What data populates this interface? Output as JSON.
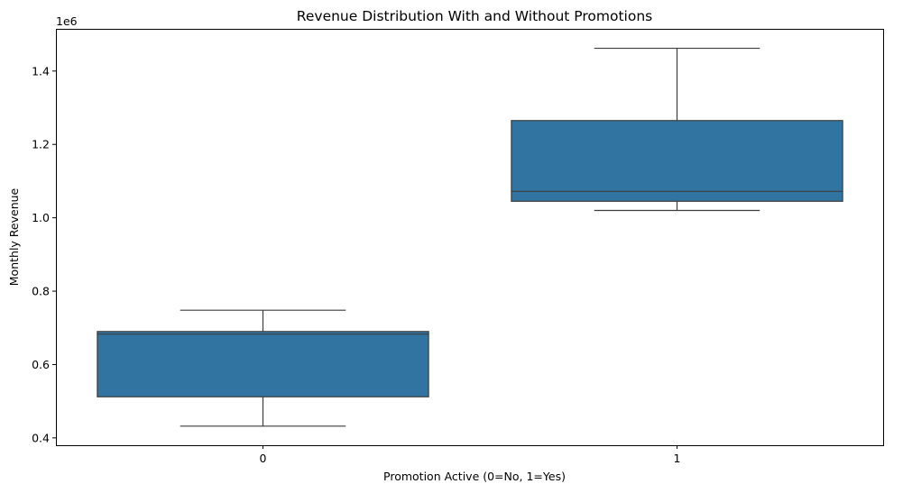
{
  "chart_data": {
    "type": "box",
    "title": "Revenue Distribution With and Without Promotions",
    "xlabel": "Promotion Active (0=No, 1=Yes)",
    "ylabel": "Monthly Revenue",
    "y_offset_label": "1e6",
    "y_scale": 1000000,
    "ylim": [
      0.38,
      1.515
    ],
    "y_ticks": [
      0.4,
      0.6,
      0.8,
      1.0,
      1.2,
      1.4
    ],
    "y_tick_labels": [
      "0.4",
      "0.6",
      "0.8",
      "1.0",
      "1.2",
      "1.4"
    ],
    "categories": [
      "0",
      "1"
    ],
    "boxes": [
      {
        "category": "0",
        "whisker_low": 0.432,
        "q1": 0.512,
        "median": 0.683,
        "q3": 0.69,
        "whisker_high": 0.748
      },
      {
        "category": "1",
        "whisker_low": 1.02,
        "q1": 1.045,
        "median": 1.072,
        "q3": 1.265,
        "whisker_high": 1.462
      }
    ],
    "color": "#3274a1",
    "line_color": "#3d3d3d",
    "grid": false,
    "legend": "none"
  }
}
